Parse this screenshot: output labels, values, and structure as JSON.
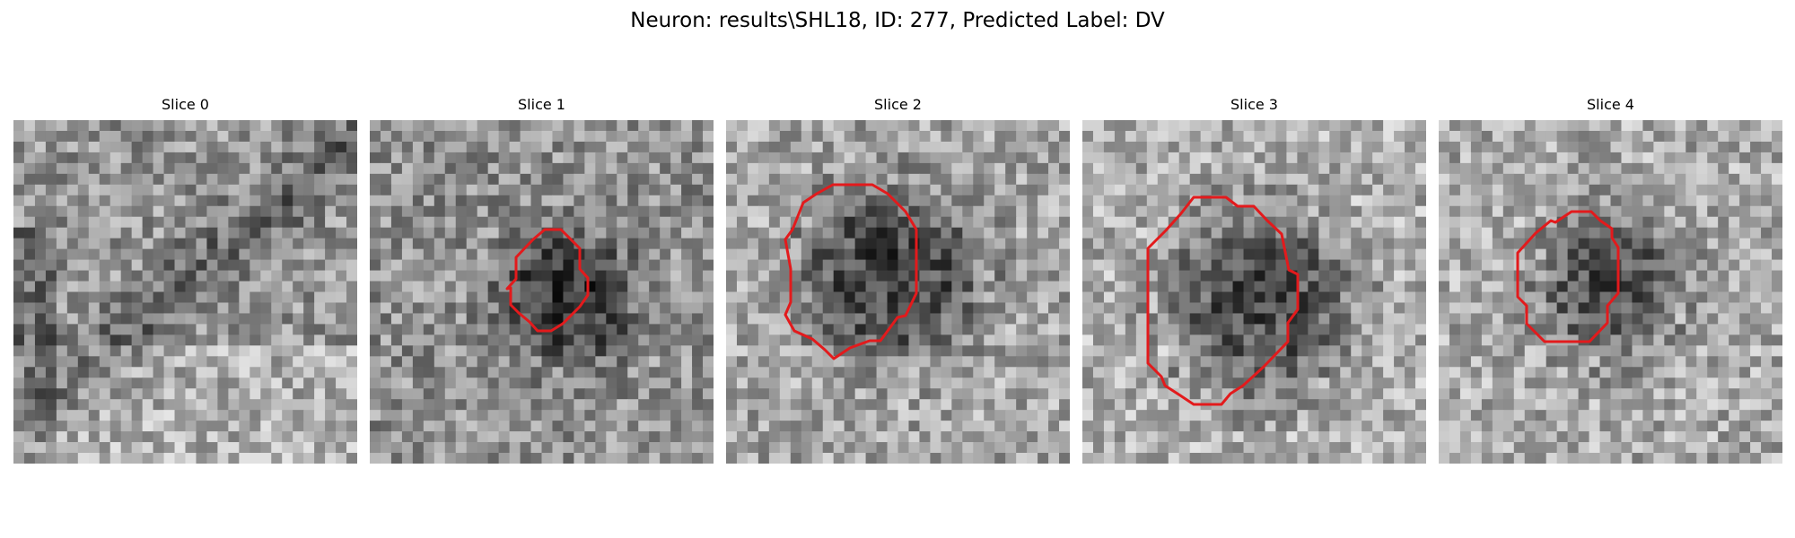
{
  "figure": {
    "title": "Neuron: results\\SHL18, ID: 277, Predicted Label: DV"
  },
  "style": {
    "contour_color": "#e31a1c",
    "colormap": "gray"
  },
  "slices": [
    {
      "label": "Slice 0",
      "has_contour": false,
      "pattern": "dark-diagonal-band-upper-left"
    },
    {
      "label": "Slice 1",
      "has_contour": true,
      "pattern": "small-dark-blob-center-right"
    },
    {
      "label": "Slice 2",
      "has_contour": true,
      "pattern": "large-dark-blob-center"
    },
    {
      "label": "Slice 3",
      "has_contour": true,
      "pattern": "large-dark-blob-center"
    },
    {
      "label": "Slice 4",
      "has_contour": true,
      "pattern": "medium-dark-blob-center"
    }
  ]
}
